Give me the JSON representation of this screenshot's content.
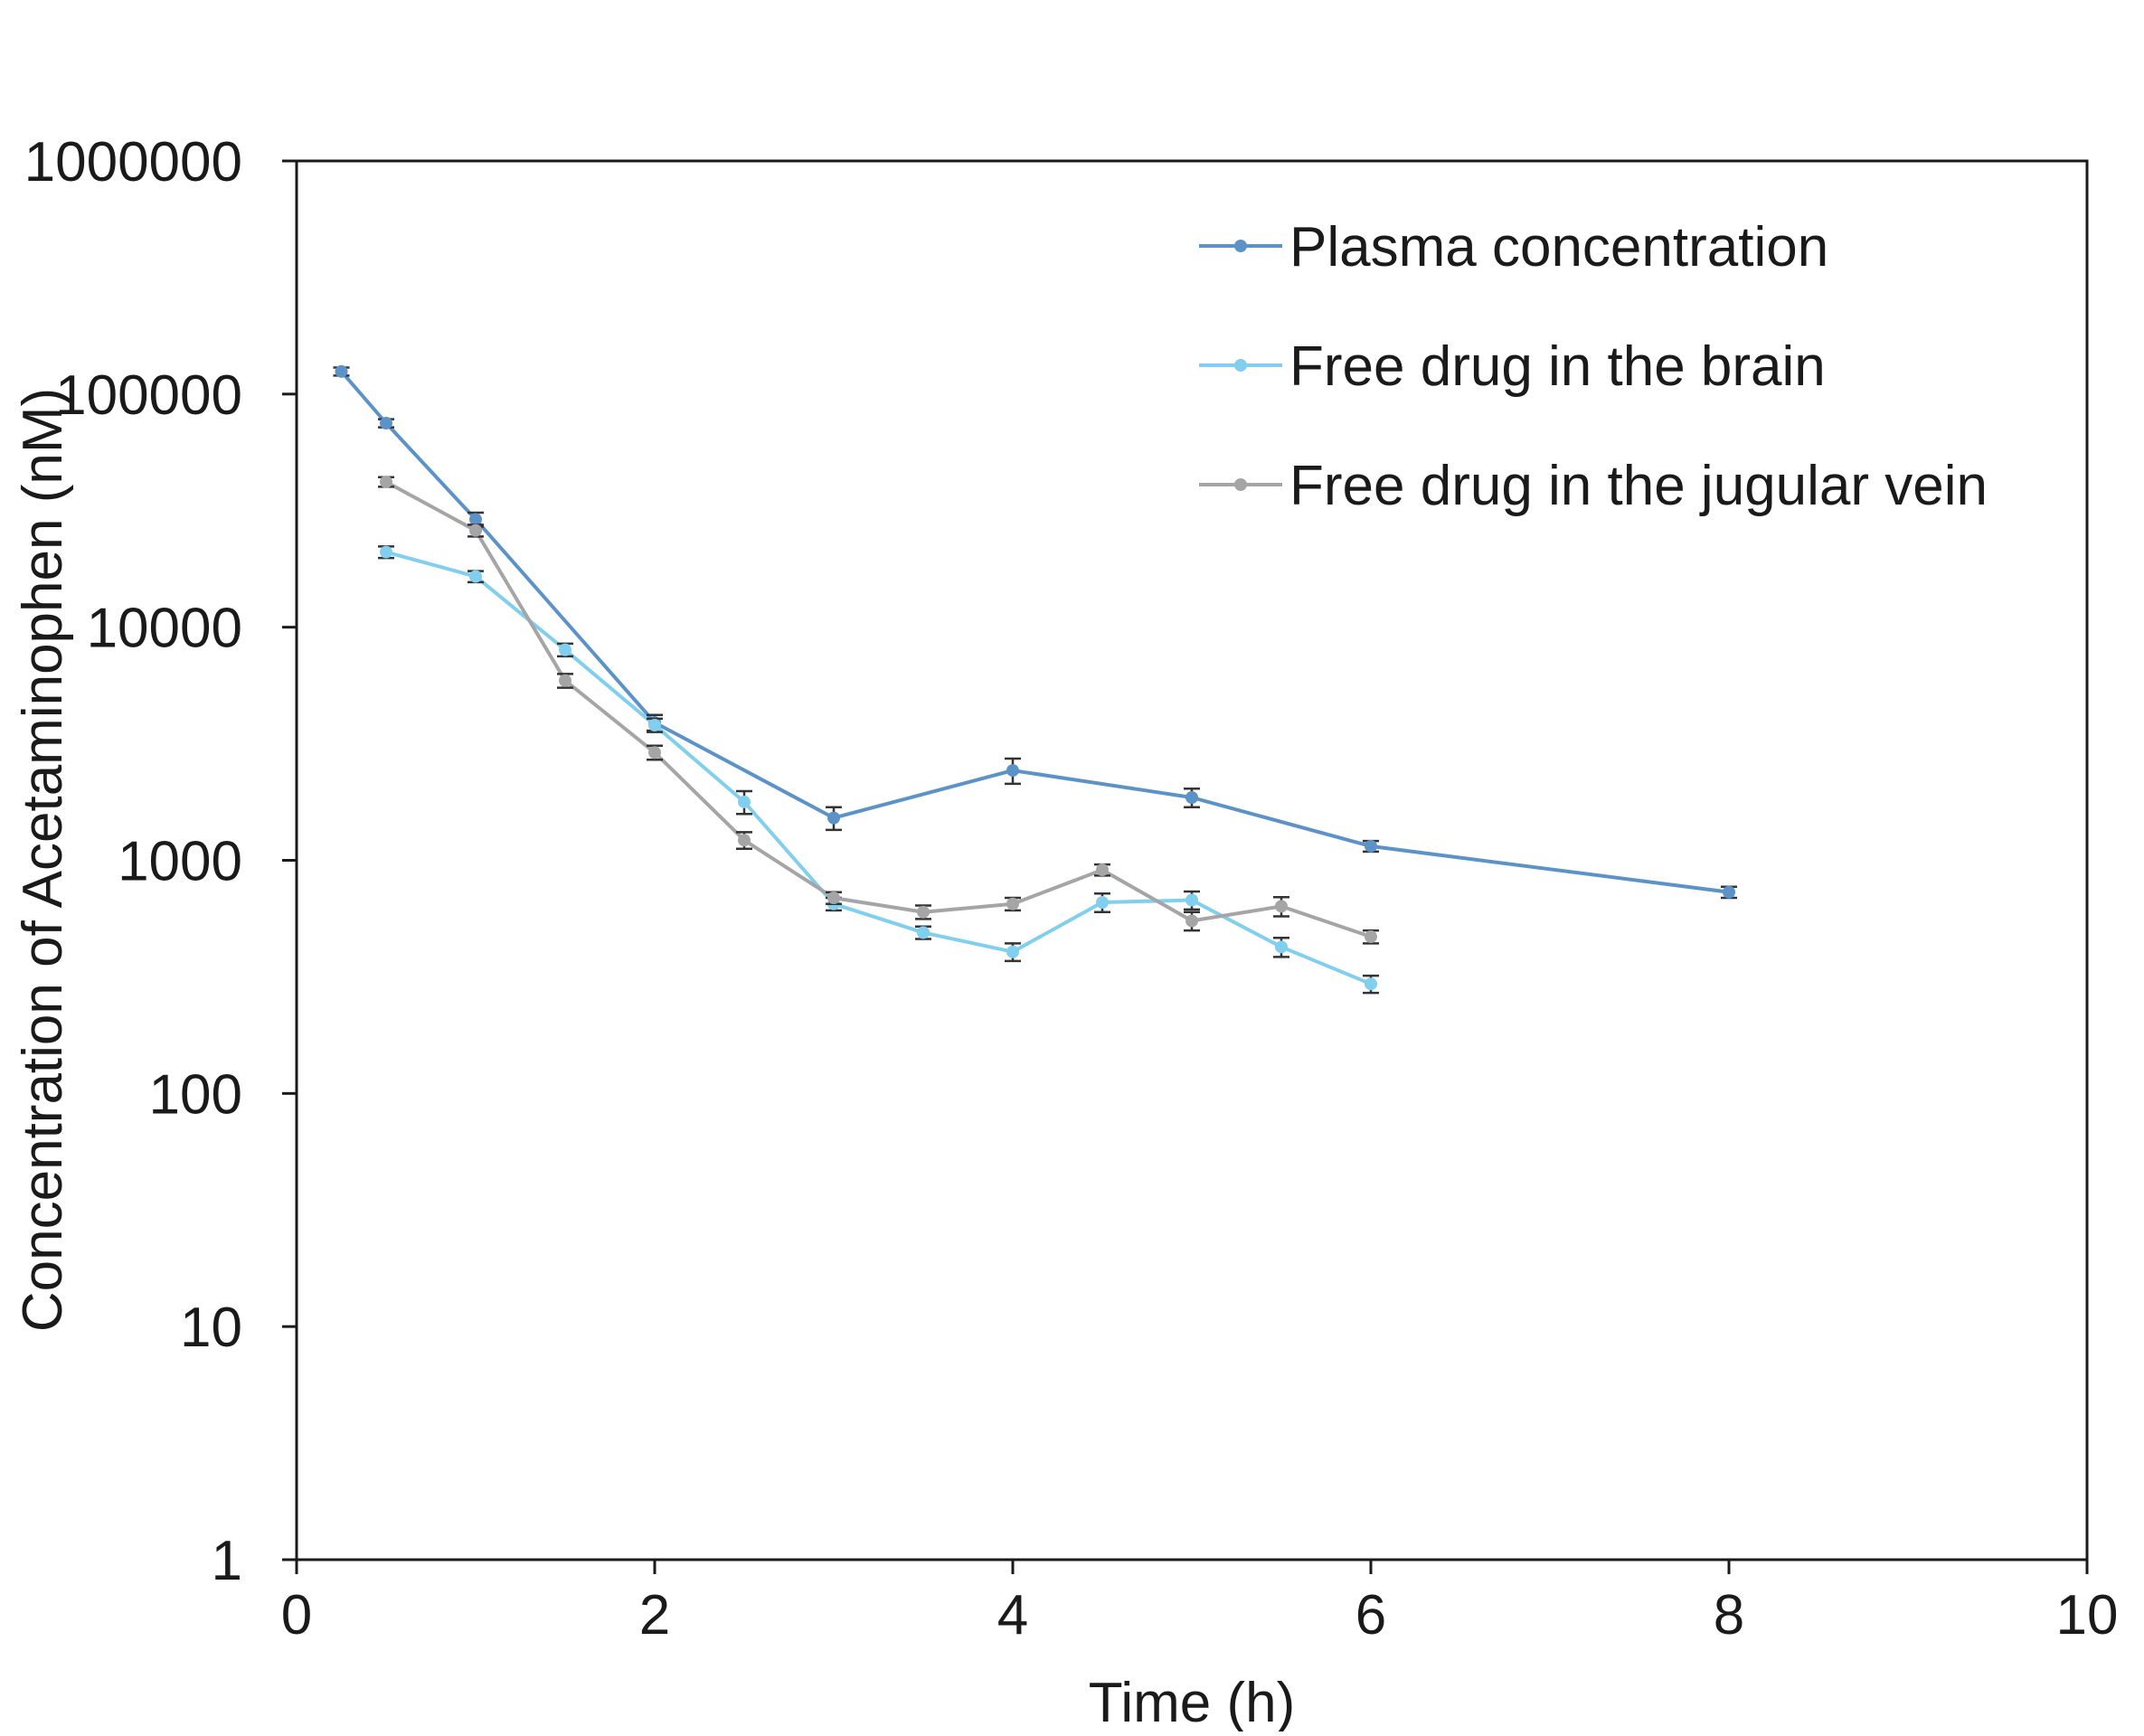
{
  "chart_data": {
    "type": "line",
    "xlabel": "Time (h)",
    "ylabel": "Concentration of Acetaminophen (nM)",
    "xlim": [
      0,
      10
    ],
    "ylim": [
      1,
      1000000
    ],
    "yscale": "log",
    "x_ticks": [
      "0",
      "2",
      "4",
      "6",
      "8",
      "10"
    ],
    "y_ticks": [
      "1",
      "10",
      "100",
      "1000",
      "10000",
      "100000",
      "1000000"
    ],
    "grid": false,
    "legend_position": "top-right",
    "series": [
      {
        "name": "Plasma concentration",
        "color": "#5b93c9",
        "x": [
          0.25,
          0.5,
          1,
          2,
          3,
          4,
          5,
          6,
          8
        ],
        "y": [
          125000,
          75000,
          29000,
          3900,
          1520,
          2430,
          1860,
          1150,
          730
        ],
        "err": [
          5000,
          3000,
          2000,
          300,
          170,
          300,
          170,
          60,
          40
        ]
      },
      {
        "name": "Free drug in the brain",
        "color": "#80cfee",
        "x": [
          0.5,
          1,
          1.5,
          2,
          2.5,
          3,
          3.5,
          4,
          4.5,
          5,
          5.5,
          6
        ],
        "y": [
          21000,
          16500,
          8000,
          3800,
          1780,
          650,
          490,
          405,
          660,
          675,
          425,
          295
        ],
        "err": [
          1200,
          900,
          500,
          250,
          200,
          40,
          30,
          35,
          60,
          60,
          40,
          25
        ]
      },
      {
        "name": "Free drug in the jugular vein",
        "color": "#a5a5a5",
        "x": [
          0.5,
          1,
          1.5,
          2,
          2.5,
          3,
          3.5,
          4,
          4.5,
          5,
          5.5,
          6
        ],
        "y": [
          42000,
          26000,
          5900,
          2900,
          1220,
          690,
          600,
          650,
          910,
          550,
          635,
          470
        ],
        "err": [
          2000,
          1500,
          400,
          200,
          100,
          40,
          40,
          40,
          50,
          50,
          60,
          30
        ]
      }
    ]
  }
}
